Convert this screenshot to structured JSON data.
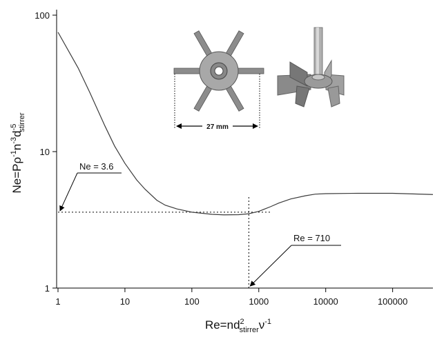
{
  "chart_data": {
    "type": "line",
    "x_label_parts": [
      "Re=nd",
      "2",
      "stirrer",
      "ν",
      "-1"
    ],
    "y_label_parts": [
      "Ne=Pρ",
      "-1",
      "n",
      "-3",
      "d",
      "-5",
      "stirrer"
    ],
    "x": [
      1,
      2,
      3,
      5,
      7,
      10,
      15,
      20,
      30,
      40,
      60,
      100,
      200,
      300,
      500,
      700,
      1000,
      1500,
      2000,
      3000,
      5000,
      7000,
      10000,
      30000,
      100000,
      400000
    ],
    "series": [
      {
        "color": "#3a3a3a",
        "values": [
          75,
          41,
          27,
          15.5,
          11,
          8.2,
          6.2,
          5.3,
          4.4,
          4.05,
          3.8,
          3.6,
          3.47,
          3.44,
          3.45,
          3.5,
          3.65,
          3.95,
          4.2,
          4.5,
          4.75,
          4.88,
          4.92,
          4.95,
          4.95,
          4.85
        ]
      }
    ],
    "xlim": [
      1,
      400000
    ],
    "ylim": [
      1,
      100
    ],
    "xticks": [
      1,
      10,
      100,
      1000,
      10000,
      100000
    ],
    "yticks": [
      1,
      10,
      100
    ],
    "log_x": true,
    "log_y": true,
    "annotations": [
      {
        "text": "Ne = 3.6",
        "x": 1,
        "y": 3.6
      },
      {
        "text": "Re = 710",
        "x": 710,
        "y": 1
      }
    ],
    "diagram_label": "27 mm"
  }
}
